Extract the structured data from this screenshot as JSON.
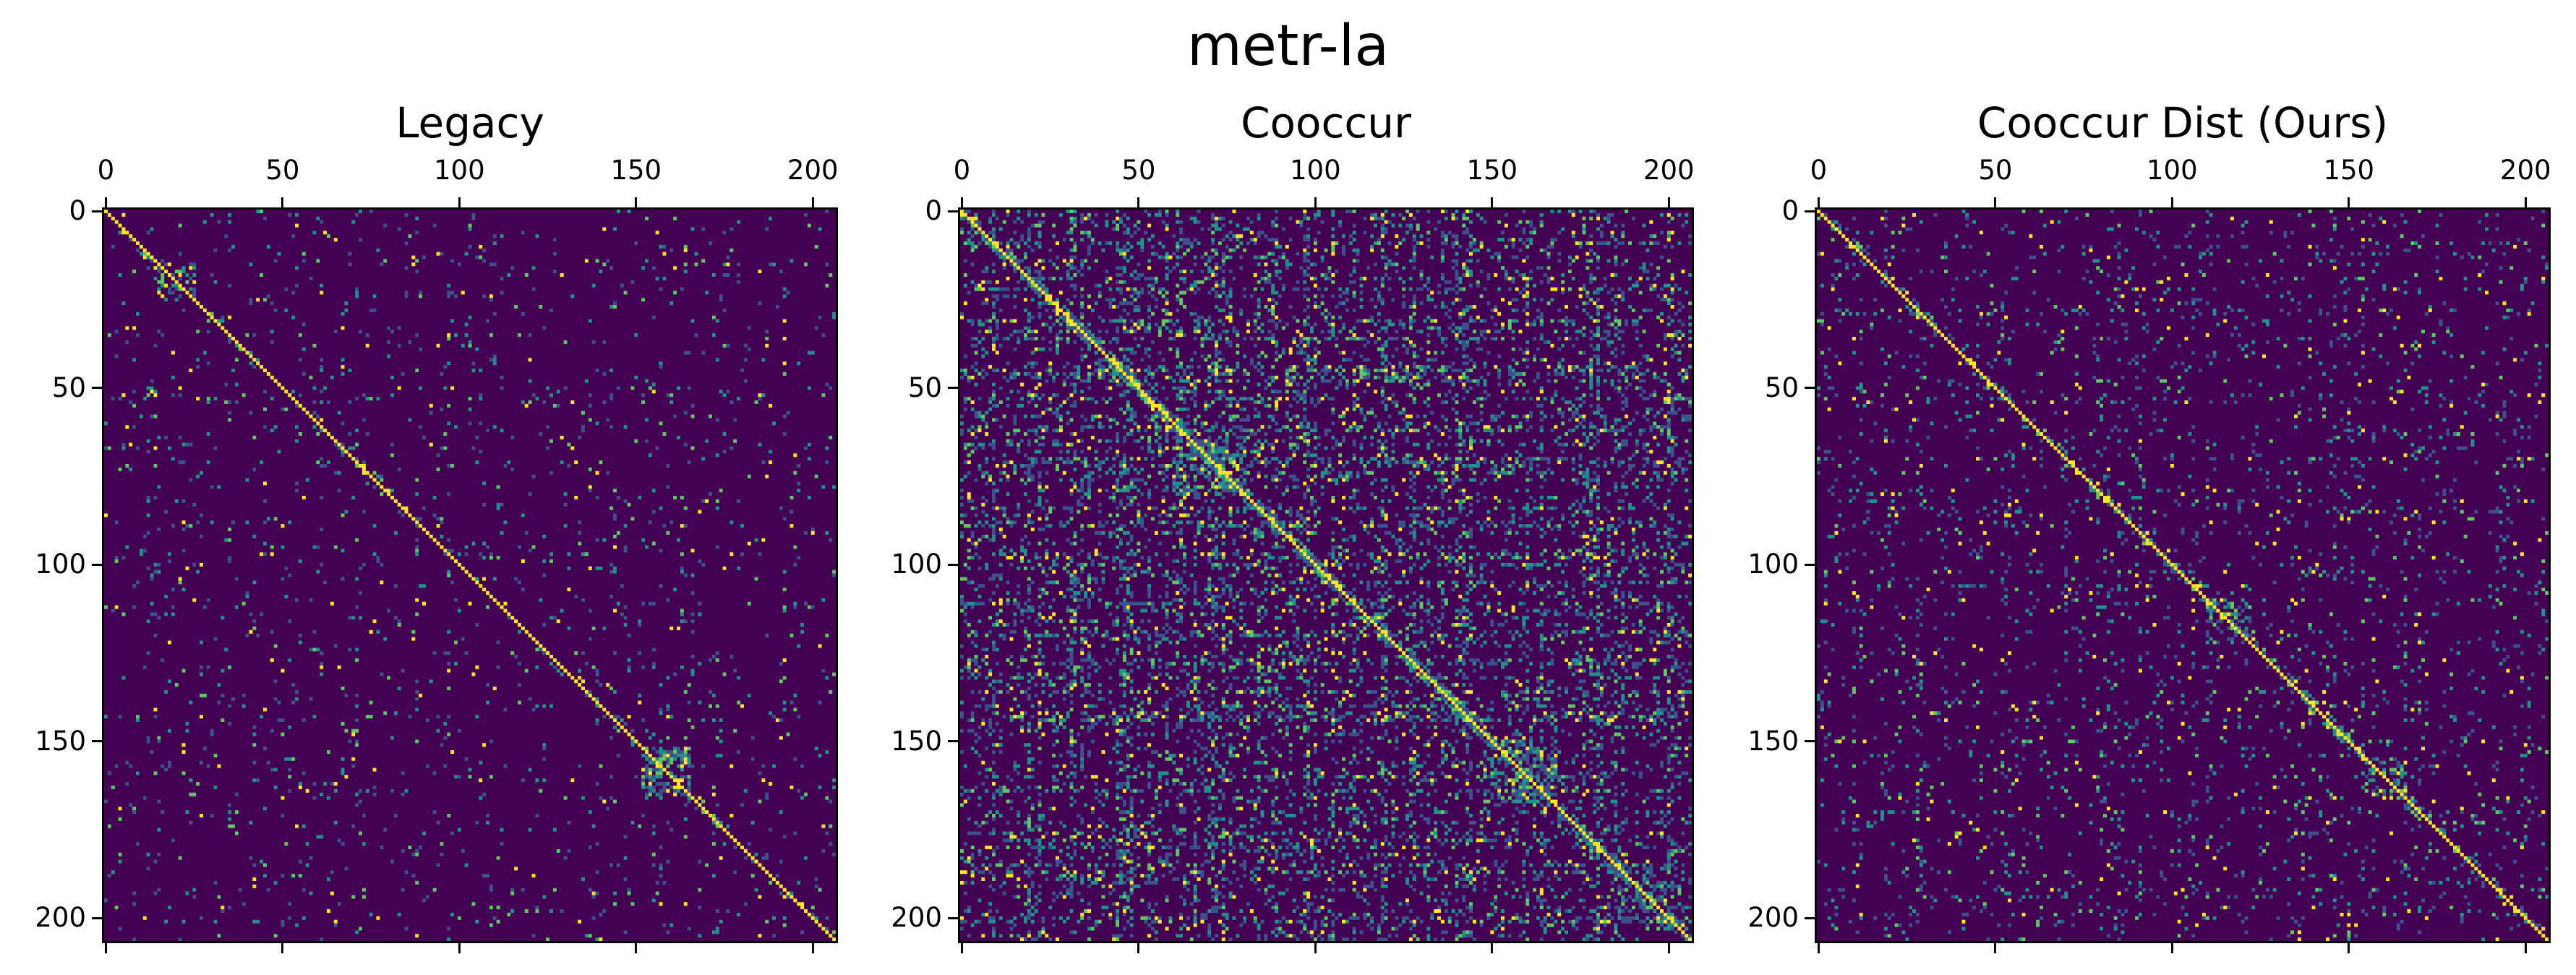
{
  "figure": {
    "suptitle": "metr-la"
  },
  "colormap": {
    "name": "viridis",
    "background": "#440154",
    "low": "#3b528b",
    "mid": "#21918c",
    "high": "#5ec962",
    "max": "#fde725"
  },
  "chart_data": [
    {
      "type": "heatmap",
      "title": "Legacy",
      "n_nodes": 207,
      "xlim": [
        0,
        207
      ],
      "ylim": [
        207,
        0
      ],
      "xticks": [
        0,
        50,
        100,
        150,
        200
      ],
      "yticks": [
        0,
        50,
        100,
        150,
        200
      ],
      "xtick_labels": [
        "0",
        "50",
        "100",
        "150",
        "200"
      ],
      "ytick_labels": [
        "0",
        "50",
        "100",
        "150",
        "200"
      ],
      "xaxis_position": "top",
      "diagonal_value": 1.0,
      "density": "sparse",
      "off_diagonal_fraction": 0.03,
      "blocks": [
        {
          "rows": [
            152,
            165
          ],
          "cols": [
            152,
            165
          ],
          "level": 0.6
        },
        {
          "rows": [
            15,
            25
          ],
          "cols": [
            15,
            25
          ],
          "level": 0.4
        }
      ],
      "value_range": [
        0,
        1
      ]
    },
    {
      "type": "heatmap",
      "title": "Cooccur",
      "n_nodes": 207,
      "xlim": [
        0,
        207
      ],
      "ylim": [
        207,
        0
      ],
      "xticks": [
        0,
        50,
        100,
        150,
        200
      ],
      "yticks": [
        0,
        50,
        100,
        150,
        200
      ],
      "xtick_labels": [
        "0",
        "50",
        "100",
        "150",
        "200"
      ],
      "ytick_labels": [
        "0",
        "50",
        "100",
        "150",
        "200"
      ],
      "xaxis_position": "top",
      "diagonal_value": 1.0,
      "density": "dense",
      "off_diagonal_fraction": 0.14,
      "blocks": [
        {
          "rows": [
            60,
            80
          ],
          "cols": [
            60,
            80
          ],
          "level": 0.55
        },
        {
          "rows": [
            110,
            120
          ],
          "cols": [
            110,
            120
          ],
          "level": 0.5
        },
        {
          "rows": [
            150,
            168
          ],
          "cols": [
            150,
            168
          ],
          "level": 0.6
        },
        {
          "rows": [
            185,
            200
          ],
          "cols": [
            185,
            200
          ],
          "level": 0.5
        }
      ],
      "value_range": [
        0,
        1
      ]
    },
    {
      "type": "heatmap",
      "title": "Cooccur Dist (Ours)",
      "n_nodes": 207,
      "xlim": [
        0,
        207
      ],
      "ylim": [
        207,
        0
      ],
      "xticks": [
        0,
        50,
        100,
        150,
        200
      ],
      "yticks": [
        0,
        50,
        100,
        150,
        200
      ],
      "xtick_labels": [
        "0",
        "50",
        "100",
        "150",
        "200"
      ],
      "ytick_labels": [
        "0",
        "50",
        "100",
        "150",
        "200"
      ],
      "xaxis_position": "top",
      "diagonal_value": 1.0,
      "density": "medium",
      "off_diagonal_fraction": 0.05,
      "blocks": [
        {
          "rows": [
            155,
            165
          ],
          "cols": [
            155,
            165
          ],
          "level": 0.5
        },
        {
          "rows": [
            110,
            122
          ],
          "cols": [
            110,
            122
          ],
          "level": 0.4
        }
      ],
      "value_range": [
        0,
        1
      ]
    }
  ]
}
